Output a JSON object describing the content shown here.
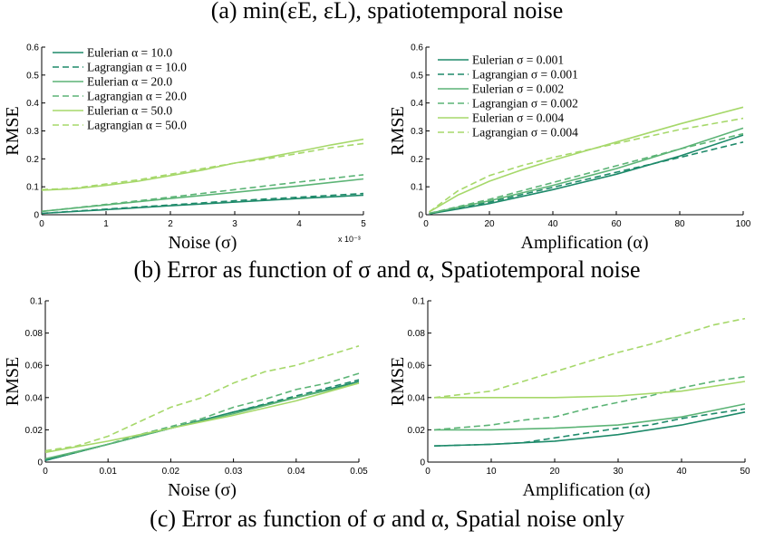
{
  "captions": {
    "a": "(a) min(εE, εL), spatiotemporal noise",
    "b": "(b) Error as function of σ and α, Spatiotemporal noise",
    "c": "(c) Error as function of σ and α, Spatial noise only"
  },
  "chart_data": [
    {
      "id": "b-left",
      "type": "line",
      "xlabel": "Noise (σ)",
      "ylabel": "RMSE",
      "x_exponent_label": "x 10⁻³",
      "xlim": [
        0,
        5
      ],
      "ylim": [
        0,
        0.6
      ],
      "xticks": [
        0,
        1,
        2,
        3,
        4,
        5
      ],
      "xtick_labels": [
        "0",
        "1",
        "2",
        "3",
        "4",
        "5"
      ],
      "yticks": [
        0,
        0.1,
        0.2,
        0.3,
        0.4,
        0.5,
        0.6
      ],
      "ytick_labels": [
        "0",
        "0.1",
        "0.2",
        "0.3",
        "0.4",
        "0.5",
        "0.6"
      ],
      "legend_position": "top-left",
      "series": [
        {
          "name": "Eulerian α = 10.0",
          "color": "#1e8a6a",
          "dash": false,
          "x": [
            0,
            1,
            2,
            3,
            4,
            5
          ],
          "y": [
            0.005,
            0.018,
            0.032,
            0.045,
            0.058,
            0.07
          ]
        },
        {
          "name": "Lagrangian α = 10.0",
          "color": "#1e8a6a",
          "dash": true,
          "x": [
            0,
            1,
            2,
            3,
            4,
            5
          ],
          "y": [
            0.005,
            0.02,
            0.035,
            0.05,
            0.063,
            0.076
          ]
        },
        {
          "name": "Eulerian α = 20.0",
          "color": "#5cb476",
          "dash": false,
          "x": [
            0,
            1,
            2,
            3,
            4,
            5
          ],
          "y": [
            0.012,
            0.035,
            0.058,
            0.08,
            0.103,
            0.128
          ]
        },
        {
          "name": "Lagrangian α = 20.0",
          "color": "#5cb476",
          "dash": true,
          "x": [
            0,
            1,
            2,
            3,
            4,
            5
          ],
          "y": [
            0.012,
            0.037,
            0.063,
            0.09,
            0.117,
            0.143
          ]
        },
        {
          "name": "Eulerian α = 50.0",
          "color": "#a6d86a",
          "dash": false,
          "x": [
            0,
            0.5,
            1,
            1.5,
            2,
            2.5,
            3,
            3.5,
            4,
            4.5,
            5
          ],
          "y": [
            0.088,
            0.093,
            0.105,
            0.12,
            0.14,
            0.16,
            0.185,
            0.205,
            0.227,
            0.25,
            0.27
          ]
        },
        {
          "name": "Lagrangian α = 50.0",
          "color": "#a6d86a",
          "dash": true,
          "x": [
            0,
            0.5,
            1,
            1.5,
            2,
            2.5,
            3,
            3.5,
            4,
            4.5,
            5
          ],
          "y": [
            0.09,
            0.095,
            0.11,
            0.125,
            0.145,
            0.165,
            0.185,
            0.2,
            0.22,
            0.24,
            0.255
          ]
        }
      ]
    },
    {
      "id": "b-right",
      "type": "line",
      "xlabel": "Amplification (α)",
      "ylabel": "RMSE",
      "xlim": [
        0,
        100
      ],
      "ylim": [
        0,
        0.6
      ],
      "xticks": [
        0,
        20,
        40,
        60,
        80,
        100
      ],
      "xtick_labels": [
        "0",
        "20",
        "40",
        "60",
        "80",
        "100"
      ],
      "yticks": [
        0,
        0.1,
        0.2,
        0.3,
        0.4,
        0.5,
        0.6
      ],
      "ytick_labels": [
        "0",
        "0.1",
        "0.2",
        "0.3",
        "0.4",
        "0.5",
        "0.6"
      ],
      "legend_position": "top-left",
      "series": [
        {
          "name": "Eulerian σ = 0.001",
          "color": "#1e8a6a",
          "dash": false,
          "x": [
            1,
            20,
            40,
            60,
            80,
            100
          ],
          "y": [
            0.003,
            0.04,
            0.09,
            0.145,
            0.21,
            0.285
          ]
        },
        {
          "name": "Lagrangian σ = 0.001",
          "color": "#1e8a6a",
          "dash": true,
          "x": [
            1,
            20,
            40,
            60,
            80,
            100
          ],
          "y": [
            0.003,
            0.045,
            0.098,
            0.152,
            0.205,
            0.26
          ]
        },
        {
          "name": "Eulerian σ = 0.002",
          "color": "#5cb476",
          "dash": false,
          "x": [
            1,
            20,
            40,
            60,
            80,
            100
          ],
          "y": [
            0.005,
            0.05,
            0.105,
            0.165,
            0.235,
            0.31
          ]
        },
        {
          "name": "Lagrangian σ = 0.002",
          "color": "#5cb476",
          "dash": true,
          "x": [
            1,
            20,
            40,
            60,
            80,
            100
          ],
          "y": [
            0.005,
            0.055,
            0.115,
            0.175,
            0.235,
            0.29
          ]
        },
        {
          "name": "Eulerian σ = 0.004",
          "color": "#a6d86a",
          "dash": false,
          "x": [
            1,
            10,
            20,
            30,
            40,
            60,
            80,
            100
          ],
          "y": [
            0.01,
            0.07,
            0.12,
            0.16,
            0.195,
            0.26,
            0.325,
            0.385
          ]
        },
        {
          "name": "Lagrangian σ = 0.004",
          "color": "#a6d86a",
          "dash": true,
          "x": [
            1,
            10,
            20,
            30,
            40,
            60,
            80,
            100
          ],
          "y": [
            0.01,
            0.085,
            0.14,
            0.175,
            0.205,
            0.255,
            0.305,
            0.345
          ]
        }
      ]
    },
    {
      "id": "c-left",
      "type": "line",
      "xlabel": "Noise (σ)",
      "ylabel": "RMSE",
      "xlim": [
        0,
        0.05
      ],
      "ylim": [
        0,
        0.1
      ],
      "xticks": [
        0,
        0.01,
        0.02,
        0.03,
        0.04,
        0.05
      ],
      "xtick_labels": [
        "0",
        "0.01",
        "0.02",
        "0.03",
        "0.04",
        "0.05"
      ],
      "yticks": [
        0,
        0.02,
        0.04,
        0.06,
        0.08,
        0.1
      ],
      "ytick_labels": [
        "0",
        "0.02",
        "0.04",
        "0.06",
        "0.08",
        "0.1"
      ],
      "series": [
        {
          "name": "Eulerian α = 10.0",
          "color": "#1e8a6a",
          "dash": false,
          "x": [
            0,
            0.01,
            0.02,
            0.03,
            0.04,
            0.05
          ],
          "y": [
            0.001,
            0.011,
            0.021,
            0.031,
            0.04,
            0.05
          ]
        },
        {
          "name": "Lagrangian α = 10.0",
          "color": "#1e8a6a",
          "dash": true,
          "x": [
            0,
            0.01,
            0.02,
            0.03,
            0.04,
            0.05
          ],
          "y": [
            0.001,
            0.011,
            0.021,
            0.031,
            0.041,
            0.051
          ]
        },
        {
          "name": "Eulerian α = 20.0",
          "color": "#5cb476",
          "dash": false,
          "x": [
            0,
            0.01,
            0.02,
            0.03,
            0.04,
            0.05
          ],
          "y": [
            0.002,
            0.011,
            0.021,
            0.03,
            0.04,
            0.049
          ]
        },
        {
          "name": "Lagrangian α = 20.0",
          "color": "#5cb476",
          "dash": true,
          "x": [
            0,
            0.005,
            0.01,
            0.015,
            0.02,
            0.025,
            0.03,
            0.035,
            0.04,
            0.045,
            0.05
          ],
          "y": [
            0.002,
            0.006,
            0.011,
            0.017,
            0.022,
            0.027,
            0.034,
            0.039,
            0.045,
            0.049,
            0.055
          ]
        },
        {
          "name": "Eulerian α = 50.0",
          "color": "#a6d86a",
          "dash": false,
          "x": [
            0,
            0.01,
            0.02,
            0.03,
            0.04,
            0.05
          ],
          "y": [
            0.006,
            0.013,
            0.021,
            0.029,
            0.038,
            0.049
          ]
        },
        {
          "name": "Lagrangian α = 50.0",
          "color": "#a6d86a",
          "dash": true,
          "x": [
            0,
            0.005,
            0.01,
            0.015,
            0.02,
            0.025,
            0.03,
            0.035,
            0.04,
            0.045,
            0.05
          ],
          "y": [
            0.007,
            0.01,
            0.016,
            0.025,
            0.034,
            0.04,
            0.049,
            0.056,
            0.06,
            0.066,
            0.072
          ]
        }
      ]
    },
    {
      "id": "c-right",
      "type": "line",
      "xlabel": "Amplification (α)",
      "ylabel": "RMSE",
      "xlim": [
        0,
        50
      ],
      "ylim": [
        0,
        0.1
      ],
      "xticks": [
        0,
        10,
        20,
        30,
        40,
        50
      ],
      "xtick_labels": [
        "0",
        "10",
        "20",
        "30",
        "40",
        "50"
      ],
      "yticks": [
        0,
        0.02,
        0.04,
        0.06,
        0.08,
        0.1
      ],
      "ytick_labels": [
        "0",
        "0.02",
        "0.04",
        "0.06",
        "0.08",
        "0.1"
      ],
      "series": [
        {
          "name": "Eulerian σ = 0.001",
          "color": "#1e8a6a",
          "dash": false,
          "x": [
            1,
            10,
            20,
            30,
            40,
            50
          ],
          "y": [
            0.01,
            0.011,
            0.013,
            0.017,
            0.023,
            0.031
          ]
        },
        {
          "name": "Lagrangian σ = 0.001",
          "color": "#1e8a6a",
          "dash": true,
          "x": [
            1,
            10,
            15,
            20,
            25,
            30,
            35,
            40,
            45,
            50
          ],
          "y": [
            0.01,
            0.011,
            0.012,
            0.015,
            0.018,
            0.021,
            0.023,
            0.027,
            0.03,
            0.033
          ]
        },
        {
          "name": "Eulerian σ = 0.002",
          "color": "#5cb476",
          "dash": false,
          "x": [
            1,
            10,
            20,
            30,
            40,
            50
          ],
          "y": [
            0.02,
            0.02,
            0.021,
            0.023,
            0.028,
            0.036
          ]
        },
        {
          "name": "Lagrangian σ = 0.002",
          "color": "#5cb476",
          "dash": true,
          "x": [
            1,
            10,
            15,
            20,
            25,
            30,
            35,
            40,
            45,
            50
          ],
          "y": [
            0.02,
            0.023,
            0.026,
            0.028,
            0.033,
            0.037,
            0.041,
            0.046,
            0.05,
            0.053
          ]
        },
        {
          "name": "Eulerian σ = 0.004",
          "color": "#a6d86a",
          "dash": false,
          "x": [
            1,
            10,
            20,
            30,
            40,
            50
          ],
          "y": [
            0.04,
            0.04,
            0.04,
            0.041,
            0.044,
            0.05
          ]
        },
        {
          "name": "Lagrangian σ = 0.004",
          "color": "#a6d86a",
          "dash": true,
          "x": [
            1,
            10,
            15,
            20,
            25,
            30,
            35,
            40,
            45,
            50
          ],
          "y": [
            0.04,
            0.044,
            0.05,
            0.056,
            0.062,
            0.068,
            0.073,
            0.079,
            0.085,
            0.089
          ]
        }
      ]
    }
  ]
}
